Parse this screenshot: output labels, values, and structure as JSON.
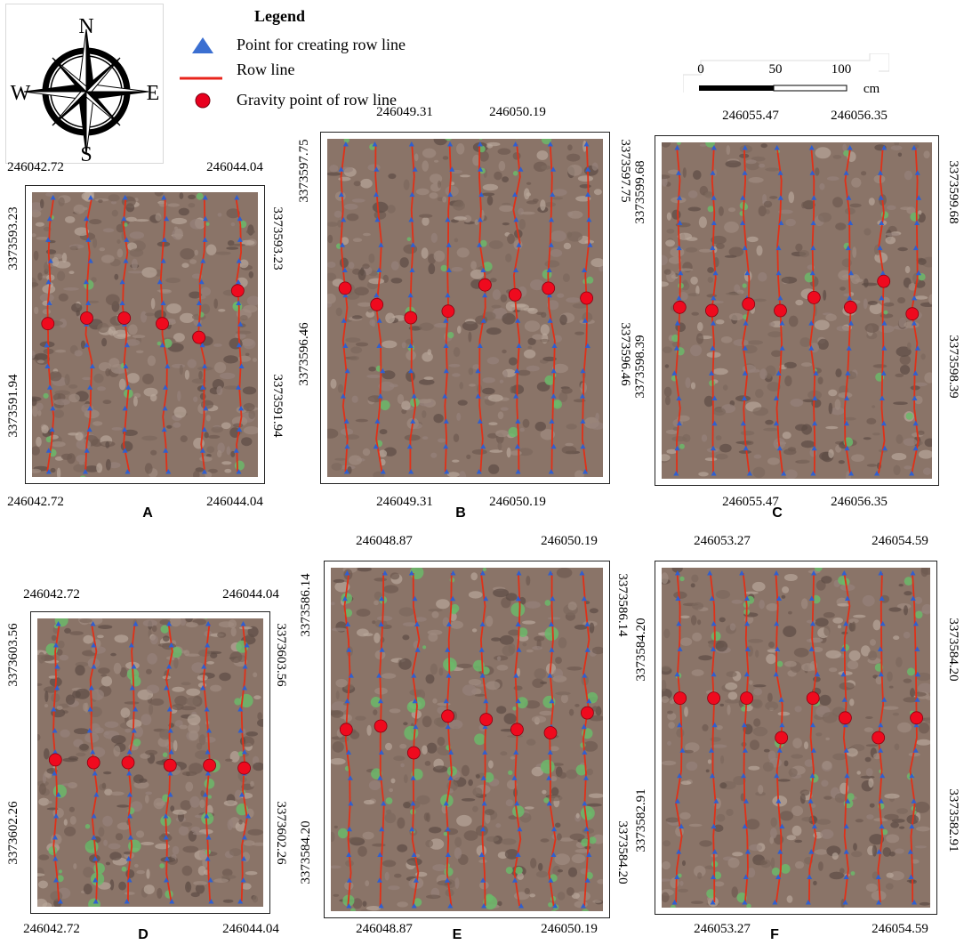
{
  "compass": {
    "north": "N",
    "south": "S",
    "east": "E",
    "west": "W"
  },
  "legend": {
    "title": "Legend",
    "items": [
      {
        "symbol": "triangle-icon",
        "label": "Point for creating row line",
        "color": "#3b6fd1"
      },
      {
        "symbol": "line-icon",
        "label": "Row line",
        "color": "#e8241c"
      },
      {
        "symbol": "circle-icon",
        "label": "Gravity point of row line",
        "color": "#e8001e"
      }
    ]
  },
  "scale": {
    "ticks": [
      "0",
      "50",
      "100"
    ],
    "unit": "cm"
  },
  "colors": {
    "row_line": "#e03018",
    "gravity_point": "#ef0a1e",
    "marker": "#2f5fd0",
    "soil_base": "#8a7468",
    "plant": "#6bb86a"
  },
  "panels": [
    {
      "id": "A",
      "letter": "A",
      "top_left_x": "246042.72",
      "top_right_x": "246044.04",
      "bottom_left_x": "246042.72",
      "bottom_right_x": "246044.04",
      "left_upper_y": "3373593.23",
      "left_lower_y": "3373591.94",
      "right_upper_y": "3373593.23",
      "right_lower_y": "3373591.94",
      "rows": 6,
      "gravity": [
        0.46,
        0.44,
        0.44,
        0.46,
        0.51,
        0.34
      ],
      "plants": 0.1
    },
    {
      "id": "B",
      "letter": "B",
      "top_left_x": "246049.31",
      "top_right_x": "246050.19",
      "bottom_left_x": "246049.31",
      "bottom_right_x": "246050.19",
      "left_upper_y": "3373597.75",
      "left_lower_y": "3373596.46",
      "right_upper_y": "3373597.75",
      "right_lower_y": "3373596.46",
      "rows": 8,
      "gravity": [
        0.44,
        0.49,
        0.53,
        0.51,
        0.43,
        0.46,
        0.44,
        0.47
      ],
      "plants": 0.15
    },
    {
      "id": "C",
      "letter": "C",
      "top_left_x": "246055.47",
      "top_right_x": "246056.35",
      "bottom_left_x": "246055.47",
      "bottom_right_x": "246056.35",
      "left_upper_y": "3373599.68",
      "left_lower_y": "3373598.39",
      "right_upper_y": "3373599.68",
      "right_lower_y": "3373598.39",
      "rows": 8,
      "gravity": [
        0.49,
        0.5,
        0.48,
        0.5,
        0.46,
        0.49,
        0.41,
        0.51
      ],
      "plants": 0.12
    },
    {
      "id": "D",
      "letter": "D",
      "top_left_x": "246042.72",
      "top_right_x": "246044.04",
      "bottom_left_x": "246042.72",
      "bottom_right_x": "246044.04",
      "left_upper_y": "3373603.56",
      "left_lower_y": "3373602.26",
      "right_upper_y": "3373603.56",
      "right_lower_y": "3373602.26",
      "rows": 6,
      "gravity": [
        0.49,
        0.5,
        0.5,
        0.51,
        0.51,
        0.52
      ],
      "plants": 0.45
    },
    {
      "id": "E",
      "letter": "E",
      "top_left_x": "246048.87",
      "top_right_x": "246050.19",
      "bottom_left_x": "246048.87",
      "bottom_right_x": "246050.19",
      "left_upper_y": "3373586.14",
      "left_lower_y": "3373584.20",
      "right_upper_y": "3373586.14",
      "right_lower_y": "3373584.20",
      "rows": 8,
      "gravity": [
        0.47,
        0.46,
        0.54,
        0.43,
        0.44,
        0.47,
        0.48,
        0.42
      ],
      "plants": 0.5
    },
    {
      "id": "F",
      "letter": "F",
      "top_left_x": "246053.27",
      "top_right_x": "246054.59",
      "bottom_left_x": "246053.27",
      "bottom_right_x": "246054.59",
      "left_upper_y": "3373584.20",
      "left_lower_y": "3373582.91",
      "right_upper_y": "3373584.20",
      "right_lower_y": "3373582.91",
      "rows": 8,
      "gravity": [
        0.38,
        0.38,
        0.38,
        0.5,
        0.38,
        0.44,
        0.5,
        0.44
      ],
      "plants": 0.12
    }
  ]
}
